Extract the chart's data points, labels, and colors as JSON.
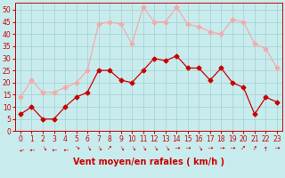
{
  "hours": [
    0,
    1,
    2,
    3,
    4,
    5,
    6,
    7,
    8,
    9,
    10,
    11,
    12,
    13,
    14,
    15,
    16,
    17,
    18,
    19,
    20,
    21,
    22,
    23
  ],
  "wind_avg": [
    7,
    10,
    5,
    5,
    10,
    14,
    16,
    25,
    25,
    21,
    20,
    25,
    30,
    29,
    31,
    26,
    26,
    21,
    26,
    20,
    18,
    7,
    14,
    12
  ],
  "wind_gust": [
    14,
    21,
    16,
    16,
    18,
    20,
    25,
    44,
    45,
    44,
    36,
    51,
    45,
    45,
    51,
    44,
    43,
    41,
    40,
    46,
    45,
    36,
    34,
    26
  ],
  "avg_color": "#cc0000",
  "gust_color": "#f4aaaa",
  "bg_color": "#c8eced",
  "grid_color": "#a8d4d6",
  "xlabel": "Vent moyen/en rafales ( km/h )",
  "xlabel_color": "#cc0000",
  "ylim": [
    0,
    53
  ],
  "yticks": [
    0,
    5,
    10,
    15,
    20,
    25,
    30,
    35,
    40,
    45,
    50
  ],
  "tick_color": "#cc0000",
  "tick_fontsize": 5.5,
  "xlabel_fontsize": 7.0,
  "marker_size": 2.5,
  "line_width": 0.9,
  "arrow_angles": [
    200,
    180,
    300,
    180,
    180,
    320,
    300,
    300,
    45,
    300,
    300,
    300,
    300,
    300,
    0,
    0,
    300,
    0,
    0,
    0,
    45,
    60,
    90,
    0
  ]
}
